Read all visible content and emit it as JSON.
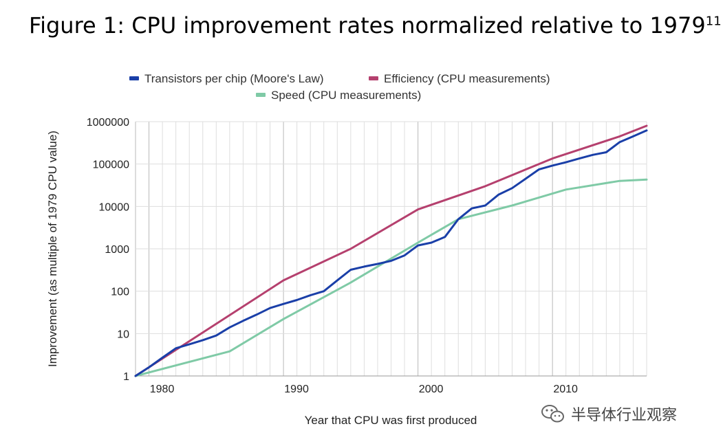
{
  "figure": {
    "title": "Figure 1: CPU improvement rates normalized relative to 1979",
    "footnote": "11"
  },
  "watermark": {
    "text": "半导体行业观察",
    "icon": "wechat-icon"
  },
  "chart_data": {
    "type": "line",
    "xlabel": "Year that CPU was first produced",
    "ylabel": "Improvement (as multiple of 1979 CPU value)",
    "x_range": [
      1979,
      2017
    ],
    "x_ticks": [
      1980,
      1990,
      2000,
      2010
    ],
    "y_scale": "log",
    "ylim": [
      1,
      1000000
    ],
    "y_ticks": [
      1,
      10,
      100,
      1000,
      10000,
      100000,
      1000000
    ],
    "grid": true,
    "legend_position": "top",
    "series": [
      {
        "name": "Transistors per chip (Moore's Law)",
        "color": "#1a3fa8",
        "points": [
          [
            1979,
            1
          ],
          [
            1980,
            1.6
          ],
          [
            1981,
            2.7
          ],
          [
            1982,
            4.5
          ],
          [
            1983,
            5.6
          ],
          [
            1984,
            7
          ],
          [
            1985,
            9
          ],
          [
            1986,
            14
          ],
          [
            1987,
            20
          ],
          [
            1988,
            28
          ],
          [
            1989,
            40
          ],
          [
            1990,
            50
          ],
          [
            1991,
            62
          ],
          [
            1992,
            80
          ],
          [
            1993,
            100
          ],
          [
            1994,
            180
          ],
          [
            1995,
            320
          ],
          [
            1996,
            380
          ],
          [
            1997,
            440
          ],
          [
            1998,
            520
          ],
          [
            1999,
            700
          ],
          [
            2000,
            1200
          ],
          [
            2001,
            1400
          ],
          [
            2002,
            1900
          ],
          [
            2003,
            5000
          ],
          [
            2004,
            9000
          ],
          [
            2005,
            10500
          ],
          [
            2006,
            19000
          ],
          [
            2007,
            27000
          ],
          [
            2008,
            45000
          ],
          [
            2009,
            75000
          ],
          [
            2010,
            92000
          ],
          [
            2011,
            110000
          ],
          [
            2012,
            135000
          ],
          [
            2013,
            165000
          ],
          [
            2014,
            190000
          ],
          [
            2015,
            330000
          ],
          [
            2016,
            450000
          ],
          [
            2017,
            620000
          ]
        ]
      },
      {
        "name": "Efficiency (CPU measurements)",
        "color": "#b5406e",
        "points": [
          [
            1979,
            1
          ],
          [
            1990,
            180
          ],
          [
            1995,
            1000
          ],
          [
            2000,
            8500
          ],
          [
            2005,
            30000
          ],
          [
            2010,
            135000
          ],
          [
            2015,
            450000
          ],
          [
            2017,
            800000
          ]
        ]
      },
      {
        "name": "Speed (CPU measurements)",
        "color": "#7fcaa6",
        "points": [
          [
            1979,
            1
          ],
          [
            1986,
            3.8
          ],
          [
            1990,
            22
          ],
          [
            1995,
            160
          ],
          [
            2000,
            1400
          ],
          [
            2003,
            5000
          ],
          [
            2007,
            10500
          ],
          [
            2011,
            25000
          ],
          [
            2015,
            40000
          ],
          [
            2017,
            43000
          ]
        ]
      }
    ]
  }
}
